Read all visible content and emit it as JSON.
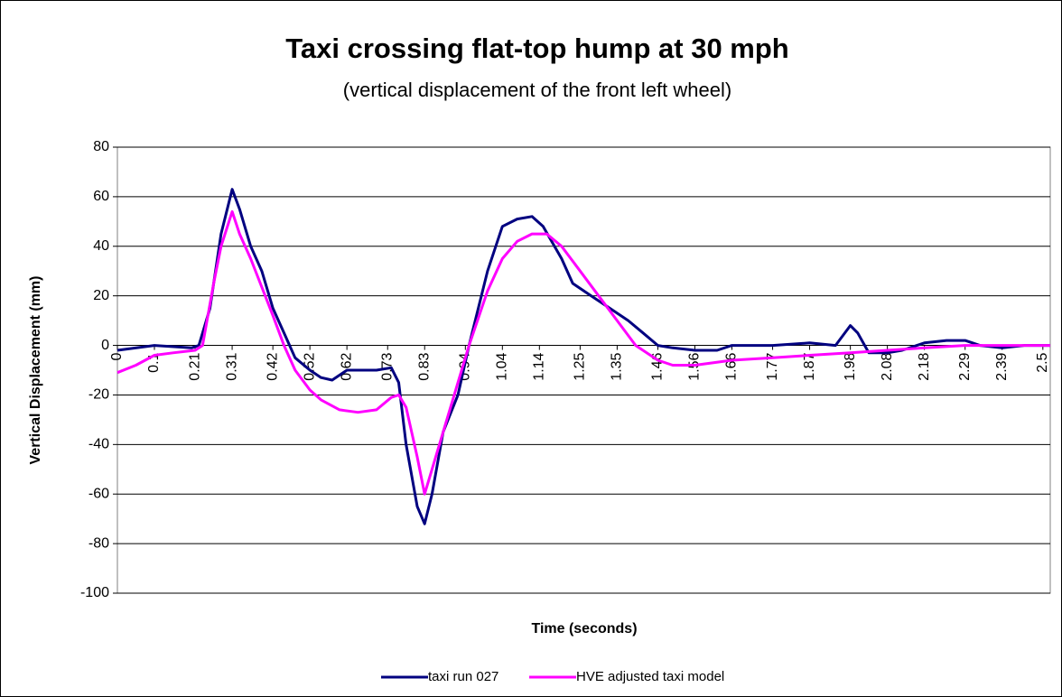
{
  "chart_data": {
    "type": "line",
    "title": "Taxi crossing flat-top hump at 30 mph",
    "subtitle": "(vertical displacement of the front left wheel)",
    "x_label": "Time (seconds)",
    "y_label": "Vertical Displacement (mm)",
    "xlim": [
      0,
      2.52
    ],
    "xticks": [
      0,
      0.1,
      0.21,
      0.31,
      0.42,
      0.52,
      0.62,
      0.73,
      0.83,
      0.94,
      1.04,
      1.14,
      1.25,
      1.35,
      1.46,
      1.56,
      1.66,
      1.77,
      1.87,
      1.98,
      2.08,
      2.18,
      2.29,
      2.39,
      2.5
    ],
    "ylim": [
      -100,
      80
    ],
    "yticks": [
      -100,
      -80,
      -60,
      -40,
      -20,
      0,
      20,
      40,
      60,
      80
    ],
    "grid": true,
    "legend": "bottom",
    "series": [
      {
        "name": "taxi run 027",
        "color": "#000080",
        "x": [
          0,
          0.1,
          0.2,
          0.22,
          0.25,
          0.28,
          0.31,
          0.33,
          0.36,
          0.39,
          0.42,
          0.45,
          0.48,
          0.52,
          0.55,
          0.58,
          0.62,
          0.66,
          0.7,
          0.74,
          0.76,
          0.78,
          0.81,
          0.83,
          0.85,
          0.88,
          0.92,
          0.95,
          1.0,
          1.04,
          1.08,
          1.12,
          1.15,
          1.2,
          1.23,
          1.28,
          1.33,
          1.38,
          1.42,
          1.46,
          1.5,
          1.56,
          1.62,
          1.66,
          1.77,
          1.87,
          1.94,
          1.98,
          2.0,
          2.03,
          2.08,
          2.12,
          2.18,
          2.24,
          2.29,
          2.33,
          2.39,
          2.45,
          2.52
        ],
        "values": [
          -2,
          0,
          -1,
          0,
          15,
          45,
          63,
          55,
          40,
          30,
          15,
          5,
          -5,
          -10,
          -13,
          -14,
          -10,
          -10,
          -10,
          -9,
          -15,
          -40,
          -65,
          -72,
          -60,
          -35,
          -20,
          0,
          30,
          48,
          51,
          52,
          48,
          35,
          25,
          20,
          15,
          10,
          5,
          0,
          -1,
          -2,
          -2,
          0,
          0,
          1,
          0,
          8,
          5,
          -3,
          -3,
          -2,
          1,
          2,
          2,
          0,
          -1,
          0,
          0
        ]
      },
      {
        "name": "HVE adjusted taxi model",
        "color": "#ff00ff",
        "x": [
          0,
          0.05,
          0.1,
          0.15,
          0.21,
          0.23,
          0.26,
          0.28,
          0.31,
          0.33,
          0.36,
          0.42,
          0.45,
          0.48,
          0.52,
          0.55,
          0.6,
          0.65,
          0.7,
          0.74,
          0.76,
          0.78,
          0.81,
          0.83,
          0.85,
          0.88,
          0.92,
          0.95,
          1.0,
          1.04,
          1.08,
          1.12,
          1.16,
          1.2,
          1.25,
          1.3,
          1.35,
          1.4,
          1.46,
          1.5,
          1.56,
          1.66,
          1.77,
          1.87,
          1.98,
          2.08,
          2.18,
          2.29,
          2.39,
          2.52
        ],
        "values": [
          -11,
          -8,
          -4,
          -3,
          -2,
          0,
          25,
          40,
          54,
          45,
          35,
          12,
          0,
          -10,
          -18,
          -22,
          -26,
          -27,
          -26,
          -21,
          -20,
          -25,
          -45,
          -60,
          -50,
          -35,
          -15,
          0,
          22,
          35,
          42,
          45,
          45,
          40,
          30,
          20,
          10,
          0,
          -6,
          -8,
          -8,
          -6,
          -5,
          -4,
          -3,
          -2,
          -1,
          0,
          0,
          0
        ]
      }
    ]
  }
}
